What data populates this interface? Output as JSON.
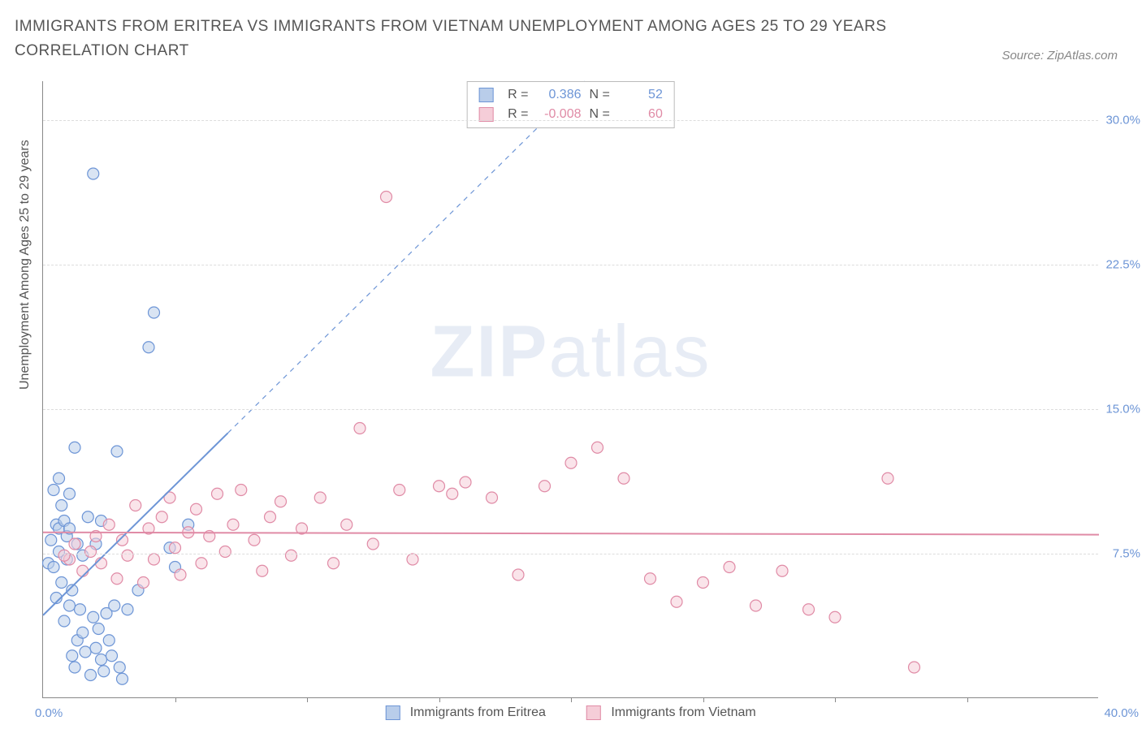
{
  "title": "IMMIGRANTS FROM ERITREA VS IMMIGRANTS FROM VIETNAM UNEMPLOYMENT AMONG AGES 25 TO 29 YEARS CORRELATION CHART",
  "source": "Source: ZipAtlas.com",
  "ylabel": "Unemployment Among Ages 25 to 29 years",
  "watermark_a": "ZIP",
  "watermark_b": "atlas",
  "chart": {
    "type": "scatter",
    "xlim": [
      0,
      40
    ],
    "ylim": [
      0,
      32
    ],
    "xmin_label": "0.0%",
    "xmax_label": "40.0%",
    "yticks": [
      7.5,
      15.0,
      22.5,
      30.0
    ],
    "ytick_labels": [
      "7.5%",
      "15.0%",
      "22.5%",
      "30.0%"
    ],
    "xtick_positions": [
      5,
      10,
      15,
      20,
      25,
      30,
      35
    ],
    "grid_color": "#dddddd",
    "axis_color": "#888888",
    "background_color": "#ffffff",
    "point_radius": 7,
    "point_opacity": 0.55,
    "line_width": 2,
    "series": [
      {
        "id": "eritrea",
        "label": "Immigrants from Eritrea",
        "color_stroke": "#6d95d6",
        "color_fill": "#b9cdea",
        "R": "0.386",
        "N": "52",
        "trend": {
          "intercept": 4.3,
          "slope": 1.35,
          "solid_xmax": 7.0
        },
        "points": [
          [
            0.2,
            7.0
          ],
          [
            0.3,
            8.2
          ],
          [
            0.4,
            6.8
          ],
          [
            0.5,
            9.0
          ],
          [
            0.5,
            5.2
          ],
          [
            0.6,
            7.6
          ],
          [
            0.6,
            8.8
          ],
          [
            0.7,
            10.0
          ],
          [
            0.7,
            6.0
          ],
          [
            0.8,
            9.2
          ],
          [
            0.8,
            4.0
          ],
          [
            0.9,
            8.4
          ],
          [
            0.9,
            7.2
          ],
          [
            1.0,
            10.6
          ],
          [
            1.0,
            4.8
          ],
          [
            1.1,
            2.2
          ],
          [
            1.1,
            5.6
          ],
          [
            1.2,
            1.6
          ],
          [
            1.3,
            3.0
          ],
          [
            1.3,
            8.0
          ],
          [
            1.4,
            4.6
          ],
          [
            1.5,
            7.4
          ],
          [
            1.5,
            3.4
          ],
          [
            1.6,
            2.4
          ],
          [
            1.7,
            9.4
          ],
          [
            1.8,
            1.2
          ],
          [
            1.9,
            4.2
          ],
          [
            2.0,
            2.6
          ],
          [
            2.1,
            3.6
          ],
          [
            2.2,
            2.0
          ],
          [
            2.3,
            1.4
          ],
          [
            2.4,
            4.4
          ],
          [
            2.5,
            3.0
          ],
          [
            2.6,
            2.2
          ],
          [
            2.7,
            4.8
          ],
          [
            2.9,
            1.6
          ],
          [
            3.0,
            1.0
          ],
          [
            0.4,
            10.8
          ],
          [
            0.6,
            11.4
          ],
          [
            1.2,
            13.0
          ],
          [
            3.2,
            4.6
          ],
          [
            3.6,
            5.6
          ],
          [
            2.0,
            8.0
          ],
          [
            2.2,
            9.2
          ],
          [
            1.0,
            8.8
          ],
          [
            2.8,
            12.8
          ],
          [
            1.9,
            27.2
          ],
          [
            4.0,
            18.2
          ],
          [
            4.2,
            20.0
          ],
          [
            4.8,
            7.8
          ],
          [
            5.0,
            6.8
          ],
          [
            5.5,
            9.0
          ]
        ]
      },
      {
        "id": "vietnam",
        "label": "Immigrants from Vietnam",
        "color_stroke": "#e08ba6",
        "color_fill": "#f5cdd8",
        "R": "-0.008",
        "N": "60",
        "trend": {
          "intercept": 8.6,
          "slope": -0.003,
          "solid_xmax": 40.0
        },
        "points": [
          [
            1.0,
            7.2
          ],
          [
            1.2,
            8.0
          ],
          [
            1.5,
            6.6
          ],
          [
            1.8,
            7.6
          ],
          [
            2.0,
            8.4
          ],
          [
            2.2,
            7.0
          ],
          [
            2.5,
            9.0
          ],
          [
            2.8,
            6.2
          ],
          [
            3.0,
            8.2
          ],
          [
            3.2,
            7.4
          ],
          [
            3.5,
            10.0
          ],
          [
            3.8,
            6.0
          ],
          [
            4.0,
            8.8
          ],
          [
            4.2,
            7.2
          ],
          [
            4.5,
            9.4
          ],
          [
            4.8,
            10.4
          ],
          [
            5.0,
            7.8
          ],
          [
            5.2,
            6.4
          ],
          [
            5.5,
            8.6
          ],
          [
            5.8,
            9.8
          ],
          [
            6.0,
            7.0
          ],
          [
            6.3,
            8.4
          ],
          [
            6.6,
            10.6
          ],
          [
            6.9,
            7.6
          ],
          [
            7.2,
            9.0
          ],
          [
            7.5,
            10.8
          ],
          [
            8.0,
            8.2
          ],
          [
            8.3,
            6.6
          ],
          [
            8.6,
            9.4
          ],
          [
            9.0,
            10.2
          ],
          [
            9.4,
            7.4
          ],
          [
            9.8,
            8.8
          ],
          [
            10.5,
            10.4
          ],
          [
            11.0,
            7.0
          ],
          [
            11.5,
            9.0
          ],
          [
            12.0,
            14.0
          ],
          [
            12.5,
            8.0
          ],
          [
            13.5,
            10.8
          ],
          [
            14.0,
            7.2
          ],
          [
            15.0,
            11.0
          ],
          [
            15.5,
            10.6
          ],
          [
            16.0,
            11.2
          ],
          [
            17.0,
            10.4
          ],
          [
            18.0,
            6.4
          ],
          [
            19.0,
            11.0
          ],
          [
            20.0,
            12.2
          ],
          [
            21.0,
            13.0
          ],
          [
            22.0,
            11.4
          ],
          [
            23.0,
            6.2
          ],
          [
            24.0,
            5.0
          ],
          [
            25.0,
            6.0
          ],
          [
            26.0,
            6.8
          ],
          [
            27.0,
            4.8
          ],
          [
            28.0,
            6.6
          ],
          [
            29.0,
            4.6
          ],
          [
            30.0,
            4.2
          ],
          [
            32.0,
            11.4
          ],
          [
            33.0,
            1.6
          ],
          [
            13.0,
            26.0
          ],
          [
            0.8,
            7.4
          ]
        ]
      }
    ]
  },
  "colors": {
    "title_text": "#555555",
    "axis_label_text": "#555555",
    "tick_text": "#6d95d6",
    "legend_border": "#bbbbbb"
  }
}
